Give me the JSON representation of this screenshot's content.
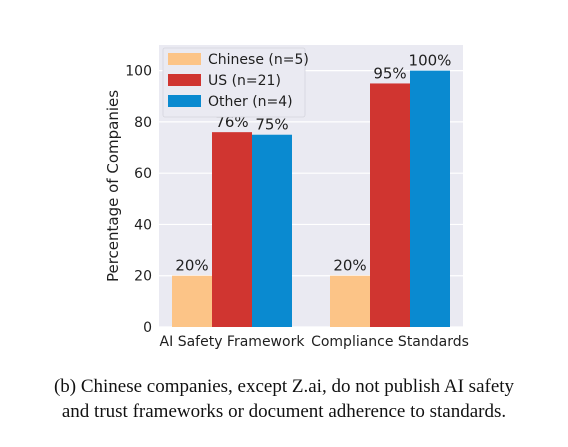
{
  "chart_data": {
    "type": "bar",
    "categories": [
      "AI Safety Framework",
      "Compliance Standards"
    ],
    "series": [
      {
        "name": "Chinese (n=5)",
        "values": [
          20,
          20
        ],
        "labels": [
          "20%",
          "20%"
        ],
        "color": "#fcc487"
      },
      {
        "name": "US (n=21)",
        "values": [
          76,
          95
        ],
        "labels": [
          "76%",
          "95%"
        ],
        "color": "#d03530"
      },
      {
        "name": "Other (n=4)",
        "values": [
          75,
          100
        ],
        "labels": [
          "75%",
          "100%"
        ],
        "color": "#0a8ad0"
      }
    ],
    "ylabel": "Percentage of Companies",
    "xlabel": "",
    "ylim": [
      0,
      110
    ],
    "yticks": [
      0,
      20,
      40,
      60,
      80,
      100
    ],
    "grid": true,
    "legend_position": "top-left",
    "plot_background": "#eaeaf2"
  },
  "caption": {
    "line1": "(b) Chinese companies, except Z.ai, do not publish AI safety",
    "line2": "and trust frameworks or document adherence to standards."
  }
}
